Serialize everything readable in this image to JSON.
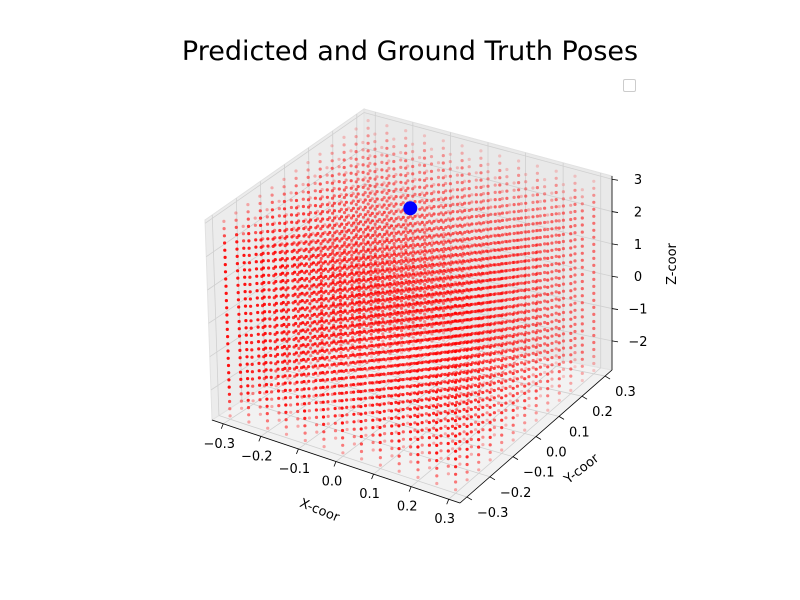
{
  "chart_data": {
    "type": "scatter",
    "projection": "3d",
    "title": "Predicted and Ground Truth Poses",
    "xlabel": "X-coor",
    "ylabel": "Y-coor",
    "zlabel": "Z-coor",
    "xlim": [
      -0.33,
      0.33
    ],
    "ylim": [
      -0.33,
      0.33
    ],
    "zlim": [
      -2.9,
      3.1
    ],
    "x_ticks": [
      -0.3,
      -0.2,
      -0.1,
      0.0,
      0.1,
      0.2,
      0.3
    ],
    "y_ticks": [
      -0.3,
      -0.2,
      -0.1,
      0.0,
      0.1,
      0.2,
      0.3
    ],
    "z_ticks": [
      -2,
      -1,
      0,
      1,
      2,
      3
    ],
    "x_tick_labels": [
      "−0.3",
      "−0.2",
      "−0.1",
      "0.0",
      "0.1",
      "0.2",
      "0.3"
    ],
    "y_tick_labels": [
      "−0.3",
      "−0.2",
      "−0.1",
      "0.0",
      "0.1",
      "0.2",
      "0.3"
    ],
    "z_tick_labels": [
      "−2",
      "−1",
      "0",
      "1",
      "2",
      "3"
    ],
    "grid": true,
    "legend": {
      "placement": "top-right",
      "entries": []
    },
    "series": [
      {
        "role": "predicted",
        "color": "#ff0000",
        "marker": "small-dot",
        "grid": {
          "x_values": [
            -0.3,
            -0.25,
            -0.2,
            -0.15,
            -0.1,
            -0.05,
            0.0,
            0.05,
            0.1,
            0.15,
            0.2,
            0.25,
            0.3
          ],
          "y_values": [
            -0.3,
            -0.25,
            -0.2,
            -0.15,
            -0.1,
            -0.05,
            0.0,
            0.05,
            0.1,
            0.15,
            0.2,
            0.25,
            0.3
          ],
          "z_range": [
            -2.8,
            3.0
          ],
          "z_count": 28
        }
      },
      {
        "role": "ground-truth",
        "color": "#0000ff",
        "marker": "large-dot",
        "points": [
          [
            0.0,
            0.0,
            2.8
          ]
        ]
      }
    ]
  }
}
